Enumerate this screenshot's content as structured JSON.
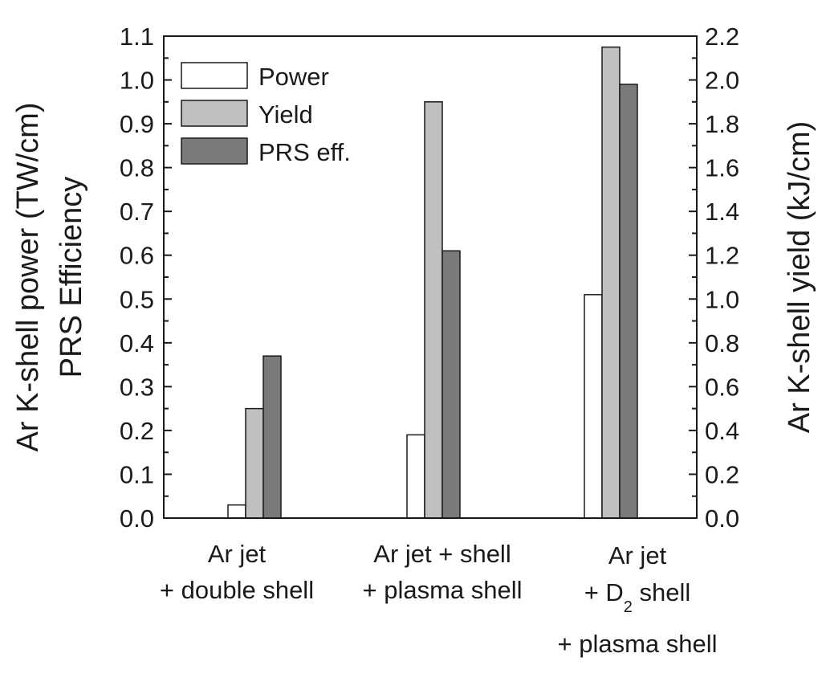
{
  "chart_data": {
    "type": "bar",
    "title": "",
    "categories": [
      {
        "lines": [
          "Ar jet",
          "+ double shell"
        ]
      },
      {
        "lines": [
          "Ar jet + shell",
          "+ plasma shell"
        ]
      },
      {
        "lines": [
          "Ar jet",
          "+ D",
          "2",
          " shell",
          "+ plasma shell"
        ]
      }
    ],
    "series": [
      {
        "name": "Power",
        "axis": "left",
        "values": [
          0.03,
          0.19,
          0.51
        ],
        "color": "#ffffff"
      },
      {
        "name": "Yield",
        "axis": "right",
        "values": [
          0.5,
          1.9,
          2.15
        ],
        "color": "#c0c0c0"
      },
      {
        "name": "PRS eff.",
        "axis": "left",
        "values": [
          0.37,
          0.61,
          0.99
        ],
        "color": "#7a7a7a"
      }
    ],
    "ylabel_left_line1": "Ar K-shell power (TW/cm)",
    "ylabel_left_line2": "PRS Efficiency",
    "ylabel_right": "Ar K-shell yield (kJ/cm)",
    "ylim_left": [
      0.0,
      1.1
    ],
    "ylim_right": [
      0.0,
      2.2
    ],
    "left_ticks": [
      "0.0",
      "0.1",
      "0.2",
      "0.3",
      "0.4",
      "0.5",
      "0.6",
      "0.7",
      "0.8",
      "0.9",
      "1.0",
      "1.1"
    ],
    "right_ticks": [
      "0.0",
      "0.2",
      "0.4",
      "0.6",
      "0.8",
      "1.0",
      "1.2",
      "1.4",
      "1.6",
      "1.8",
      "2.0",
      "2.2"
    ],
    "legend_position": "top-left",
    "grid": false
  }
}
